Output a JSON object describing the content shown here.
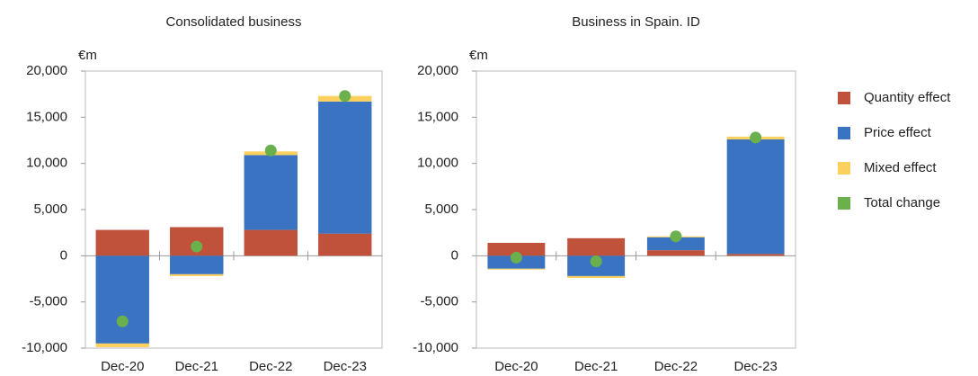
{
  "chart_data": [
    {
      "type": "bar",
      "stacked": true,
      "title": "Consolidated business",
      "y_unit": "€m",
      "categories": [
        "Dec-20",
        "Dec-21",
        "Dec-22",
        "Dec-23"
      ],
      "series": [
        {
          "name": "Quantity effect",
          "color": "#c0513a",
          "values": [
            2800,
            3100,
            2800,
            2400
          ]
        },
        {
          "name": "Price effect",
          "color": "#3a73c2",
          "values": [
            -9500,
            -2000,
            8100,
            14300
          ]
        },
        {
          "name": "Mixed effect",
          "color": "#fcd05c",
          "values": [
            -400,
            -200,
            400,
            600
          ]
        },
        {
          "name": "Total change",
          "color": "#6ab04c",
          "type": "scatter",
          "values": [
            -7100,
            1000,
            11400,
            17300
          ]
        }
      ],
      "ylim": [
        -10000,
        20000
      ],
      "yticks": [
        {
          "value": -10000,
          "label": "-10,000"
        },
        {
          "value": -5000,
          "label": "-5,000"
        },
        0,
        {
          "value": 5000,
          "label": "5,000"
        },
        {
          "value": 10000,
          "label": "10,000"
        },
        {
          "value": 15000,
          "label": "15,000"
        },
        {
          "value": 20000,
          "label": "20,000"
        }
      ]
    },
    {
      "type": "bar",
      "stacked": true,
      "title": "Business in Spain. ID",
      "y_unit": "€m",
      "categories": [
        "Dec-20",
        "Dec-21",
        "Dec-22",
        "Dec-23"
      ],
      "series": [
        {
          "name": "Quantity effect",
          "color": "#c0513a",
          "values": [
            1400,
            1900,
            600,
            200
          ]
        },
        {
          "name": "Price effect",
          "color": "#3a73c2",
          "values": [
            -1400,
            -2200,
            1400,
            12400
          ]
        },
        {
          "name": "Mixed effect",
          "color": "#fcd05c",
          "values": [
            -100,
            -200,
            100,
            300
          ]
        },
        {
          "name": "Total change",
          "color": "#6ab04c",
          "type": "scatter",
          "values": [
            -200,
            -600,
            2100,
            12800
          ]
        }
      ],
      "ylim": [
        -10000,
        20000
      ],
      "yticks": [
        {
          "value": -10000,
          "label": "-10,000"
        },
        {
          "value": -5000,
          "label": "-5,000"
        },
        0,
        {
          "value": 5000,
          "label": "5,000"
        },
        {
          "value": 10000,
          "label": "10,000"
        },
        {
          "value": 15000,
          "label": "15,000"
        },
        {
          "value": 20000,
          "label": "20,000"
        }
      ],
      "legend": "right"
    }
  ]
}
